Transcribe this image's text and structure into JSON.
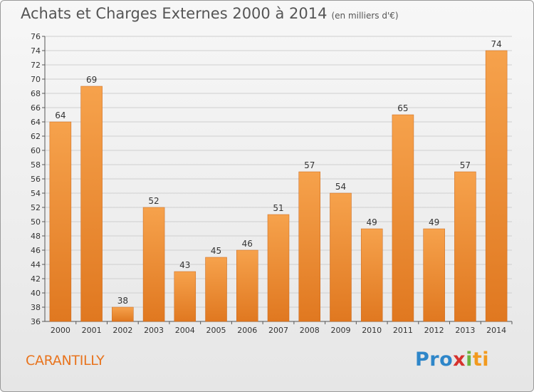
{
  "header": {
    "title": "Achats et Charges Externes 2000 à 2014",
    "unit": "(en milliers d'€)"
  },
  "footer": {
    "place": "CARANTILLY",
    "logo_parts": [
      "Pro",
      "x",
      "i",
      "ti"
    ]
  },
  "colors": {
    "bar_light": "#f6a24c",
    "bar_dark": "#e07820",
    "grid": "#cfcfcf",
    "place": "#e8741e"
  },
  "chart_data": {
    "type": "bar",
    "title": "Achats et Charges Externes 2000 à 2014",
    "subtitle": "(en milliers d'€)",
    "categories": [
      "2000",
      "2001",
      "2002",
      "2003",
      "2004",
      "2005",
      "2006",
      "2007",
      "2008",
      "2009",
      "2010",
      "2011",
      "2012",
      "2013",
      "2014"
    ],
    "values": [
      64,
      69,
      38,
      52,
      43,
      45,
      46,
      51,
      57,
      54,
      49,
      65,
      49,
      57,
      74
    ],
    "ylim": [
      36,
      76
    ],
    "ytick_step": 2,
    "grid": true
  }
}
